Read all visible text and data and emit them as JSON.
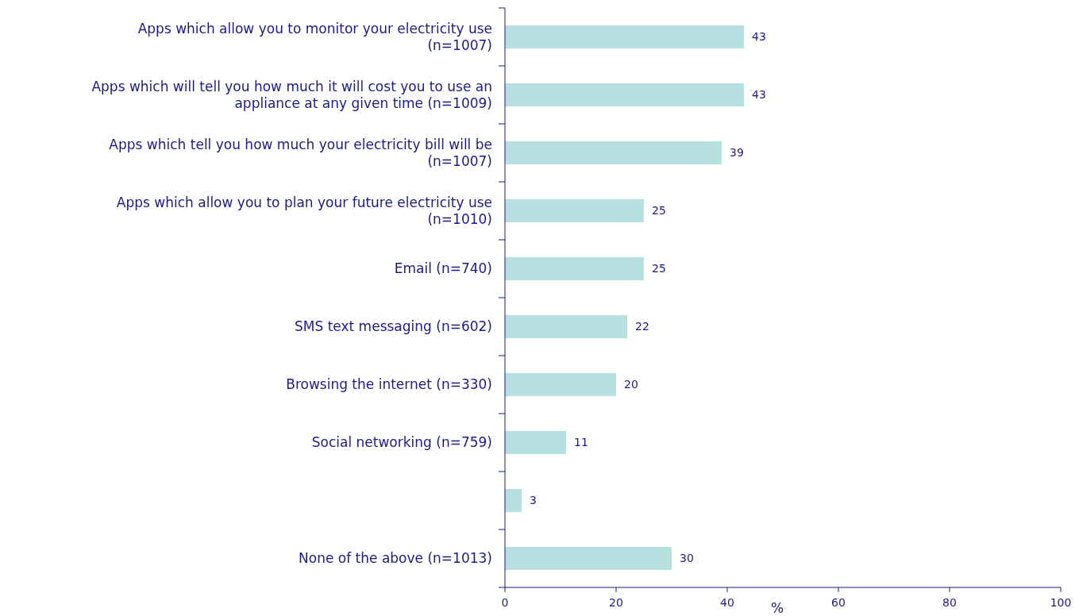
{
  "chart_data": {
    "type": "bar",
    "orientation": "horizontal",
    "xlabel": "%",
    "categories": [
      "Apps which allow you to monitor your electricity use (n=1007)",
      "Apps which will tell you how much it will cost you to use an appliance at any given time (n=1009)",
      "Apps which tell you how much your electricity bill will be (n=1007)",
      "Apps which allow you  to plan your future electricity use (n=1010)",
      "Email (n=740)",
      "SMS text messaging (n=602)",
      "Browsing the internet (n=330)",
      "Social networking (n=759)",
      null,
      "None of the above (n=1013)"
    ],
    "values": [
      43,
      43,
      39,
      25,
      25,
      22,
      20,
      11,
      3,
      30
    ],
    "color": "#b7e1e1",
    "data_labels": true,
    "xlim": [
      0,
      100
    ],
    "xticks": [
      0,
      20,
      40,
      60,
      80,
      100
    ],
    "grid": false
  }
}
